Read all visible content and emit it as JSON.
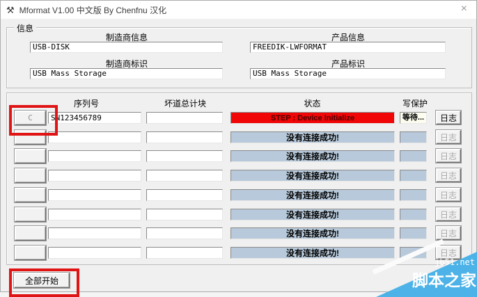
{
  "window": {
    "title": "Mformat V1.00 中文版 By Chenfnu 汉化",
    "icon_glyph": "⚒",
    "close_glyph": "×"
  },
  "info": {
    "group_label": "信息",
    "manufacturer_info": {
      "label": "制造商信息",
      "value": "USB-DISK"
    },
    "product_info": {
      "label": "产品信息",
      "value": "FREEDIK-LWFORMAT"
    },
    "manufacturer_id": {
      "label": "制造商标识",
      "value": "USB Mass Storage"
    },
    "product_id": {
      "label": "产品标识",
      "value": "USB Mass Storage"
    }
  },
  "table": {
    "headers": {
      "serial": "序列号",
      "bad_blocks": "坏道总计块",
      "status": "状态",
      "write_protect": "写保护"
    },
    "log_label": "日志",
    "rows": [
      {
        "select": "C",
        "serial": "SN123456789",
        "bad_blocks": "",
        "status": "STEP : Device Initialize",
        "status_type": "active",
        "write_protect": "等待...",
        "log_enabled": true,
        "highlighted": true
      },
      {
        "select": "",
        "serial": "",
        "bad_blocks": "",
        "status": "没有连接成功!",
        "status_type": "idle",
        "write_protect": "",
        "log_enabled": false,
        "highlighted": false
      },
      {
        "select": "",
        "serial": "",
        "bad_blocks": "",
        "status": "没有连接成功!",
        "status_type": "idle",
        "write_protect": "",
        "log_enabled": false,
        "highlighted": false
      },
      {
        "select": "",
        "serial": "",
        "bad_blocks": "",
        "status": "没有连接成功!",
        "status_type": "idle",
        "write_protect": "",
        "log_enabled": false,
        "highlighted": false
      },
      {
        "select": "",
        "serial": "",
        "bad_blocks": "",
        "status": "没有连接成功!",
        "status_type": "idle",
        "write_protect": "",
        "log_enabled": false,
        "highlighted": false
      },
      {
        "select": "",
        "serial": "",
        "bad_blocks": "",
        "status": "没有连接成功!",
        "status_type": "idle",
        "write_protect": "",
        "log_enabled": false,
        "highlighted": false
      },
      {
        "select": "",
        "serial": "",
        "bad_blocks": "",
        "status": "没有连接成功!",
        "status_type": "idle",
        "write_protect": "",
        "log_enabled": false,
        "highlighted": false
      },
      {
        "select": "",
        "serial": "",
        "bad_blocks": "",
        "status": "没有连接成功!",
        "status_type": "idle",
        "write_protect": "",
        "log_enabled": false,
        "highlighted": false
      }
    ]
  },
  "footer": {
    "start_all_label": "全部开始"
  },
  "watermark": {
    "line1": "jb51.net",
    "line2": "脚本之家",
    "color": "#4cb2e7"
  },
  "colors": {
    "annotation_red": "#e01414",
    "status_active_bg": "#f00606",
    "status_idle_bg": "#b7c9da",
    "watermark_blue": "#4cb2e7"
  }
}
